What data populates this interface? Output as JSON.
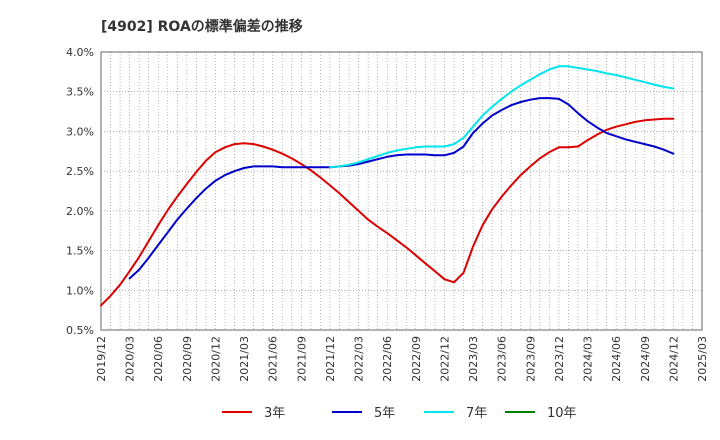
{
  "chart_data": {
    "type": "line",
    "title": "[4902]  ROAの標準偏差の推移",
    "xlabel": "",
    "ylabel": "",
    "ylim": [
      0.5,
      4.0
    ],
    "y_ticks": [
      "0.5%",
      "1.0%",
      "1.5%",
      "2.0%",
      "2.5%",
      "3.0%",
      "3.5%",
      "4.0%"
    ],
    "y_tick_values": [
      0.5,
      1.0,
      1.5,
      2.0,
      2.5,
      3.0,
      3.5,
      4.0
    ],
    "x_ticks": [
      "2019/12",
      "2020/03",
      "2020/06",
      "2020/09",
      "2020/12",
      "2021/03",
      "2021/06",
      "2021/09",
      "2021/12",
      "2022/03",
      "2022/06",
      "2022/09",
      "2022/12",
      "2023/03",
      "2023/06",
      "2023/09",
      "2023/12",
      "2024/03",
      "2024/06",
      "2024/09",
      "2024/12",
      "2025/03"
    ],
    "grid": true,
    "legend_position": "bottom",
    "series": [
      {
        "name": "3年",
        "color": "#dd0000",
        "x": [
          "2019/12",
          "2020/01",
          "2020/02",
          "2020/03",
          "2020/04",
          "2020/05",
          "2020/06",
          "2020/07",
          "2020/08",
          "2020/09",
          "2020/10",
          "2020/11",
          "2020/12",
          "2021/01",
          "2021/02",
          "2021/03",
          "2021/04",
          "2021/05",
          "2021/06",
          "2021/07",
          "2021/08",
          "2021/09",
          "2021/10",
          "2021/11",
          "2021/12",
          "2022/01",
          "2022/02",
          "2022/03",
          "2022/04",
          "2022/05",
          "2022/06",
          "2022/07",
          "2022/08",
          "2022/09",
          "2022/10",
          "2022/11",
          "2022/12",
          "2023/01",
          "2023/02",
          "2023/03",
          "2023/04",
          "2023/05",
          "2023/06",
          "2023/07",
          "2023/08",
          "2023/09",
          "2023/10",
          "2023/11",
          "2023/12",
          "2024/01",
          "2024/02",
          "2024/03",
          "2024/04",
          "2024/05",
          "2024/06",
          "2024/07",
          "2024/08",
          "2024/09",
          "2024/10",
          "2024/11",
          "2024/12"
        ],
        "values": [
          0.81,
          0.93,
          1.07,
          1.24,
          1.42,
          1.62,
          1.82,
          2.01,
          2.18,
          2.34,
          2.49,
          2.63,
          2.74,
          2.8,
          2.84,
          2.85,
          2.84,
          2.81,
          2.77,
          2.72,
          2.66,
          2.59,
          2.51,
          2.42,
          2.32,
          2.22,
          2.11,
          2.0,
          1.89,
          1.8,
          1.72,
          1.63,
          1.54,
          1.44,
          1.34,
          1.24,
          1.14,
          1.1,
          1.22,
          1.55,
          1.82,
          2.02,
          2.18,
          2.32,
          2.45,
          2.56,
          2.66,
          2.74,
          2.8,
          2.8,
          2.81,
          2.89,
          2.96,
          3.02,
          3.06,
          3.09,
          3.12,
          3.14,
          3.15,
          3.16,
          3.16
        ]
      },
      {
        "name": "5年",
        "color": "#0000cc",
        "x": [
          "2020/03",
          "2020/04",
          "2020/05",
          "2020/06",
          "2020/07",
          "2020/08",
          "2020/09",
          "2020/10",
          "2020/11",
          "2020/12",
          "2021/01",
          "2021/02",
          "2021/03",
          "2021/04",
          "2021/05",
          "2021/06",
          "2021/07",
          "2021/08",
          "2021/09",
          "2021/10",
          "2021/11",
          "2021/12",
          "2022/01",
          "2022/02",
          "2022/03",
          "2022/04",
          "2022/05",
          "2022/06",
          "2022/07",
          "2022/08",
          "2022/09",
          "2022/10",
          "2022/11",
          "2022/12",
          "2023/01",
          "2023/02",
          "2023/03",
          "2023/04",
          "2023/05",
          "2023/06",
          "2023/07",
          "2023/08",
          "2023/09",
          "2023/10",
          "2023/11",
          "2023/12",
          "2024/01",
          "2024/02",
          "2024/03",
          "2024/04",
          "2024/05",
          "2024/06",
          "2024/07",
          "2024/08",
          "2024/09",
          "2024/10",
          "2024/11",
          "2024/12"
        ],
        "values": [
          1.15,
          1.26,
          1.41,
          1.57,
          1.73,
          1.89,
          2.03,
          2.16,
          2.28,
          2.38,
          2.45,
          2.5,
          2.54,
          2.56,
          2.56,
          2.56,
          2.55,
          2.55,
          2.55,
          2.55,
          2.55,
          2.55,
          2.56,
          2.57,
          2.59,
          2.62,
          2.65,
          2.68,
          2.7,
          2.71,
          2.71,
          2.71,
          2.7,
          2.7,
          2.73,
          2.81,
          2.98,
          3.1,
          3.2,
          3.27,
          3.33,
          3.37,
          3.4,
          3.42,
          3.42,
          3.41,
          3.34,
          3.23,
          3.13,
          3.05,
          2.98,
          2.94,
          2.9,
          2.87,
          2.84,
          2.81,
          2.77,
          2.72
        ]
      },
      {
        "name": "7年",
        "color": "#00e5ee",
        "x": [
          "2021/12",
          "2022/01",
          "2022/02",
          "2022/03",
          "2022/04",
          "2022/05",
          "2022/06",
          "2022/07",
          "2022/08",
          "2022/09",
          "2022/10",
          "2022/11",
          "2022/12",
          "2023/01",
          "2023/02",
          "2023/03",
          "2023/04",
          "2023/05",
          "2023/06",
          "2023/07",
          "2023/08",
          "2023/09",
          "2023/10",
          "2023/11",
          "2023/12",
          "2024/01",
          "2024/02",
          "2024/03",
          "2024/04",
          "2024/05",
          "2024/06",
          "2024/07",
          "2024/08",
          "2024/09",
          "2024/10",
          "2024/11",
          "2024/12"
        ],
        "values": [
          2.55,
          2.56,
          2.58,
          2.61,
          2.65,
          2.69,
          2.73,
          2.76,
          2.78,
          2.8,
          2.81,
          2.81,
          2.81,
          2.84,
          2.92,
          3.06,
          3.2,
          3.31,
          3.41,
          3.5,
          3.58,
          3.65,
          3.72,
          3.78,
          3.82,
          3.82,
          3.8,
          3.78,
          3.76,
          3.73,
          3.71,
          3.68,
          3.65,
          3.62,
          3.59,
          3.56,
          3.54
        ]
      },
      {
        "name": "10年",
        "color": "#008000",
        "x": [],
        "values": []
      }
    ]
  }
}
